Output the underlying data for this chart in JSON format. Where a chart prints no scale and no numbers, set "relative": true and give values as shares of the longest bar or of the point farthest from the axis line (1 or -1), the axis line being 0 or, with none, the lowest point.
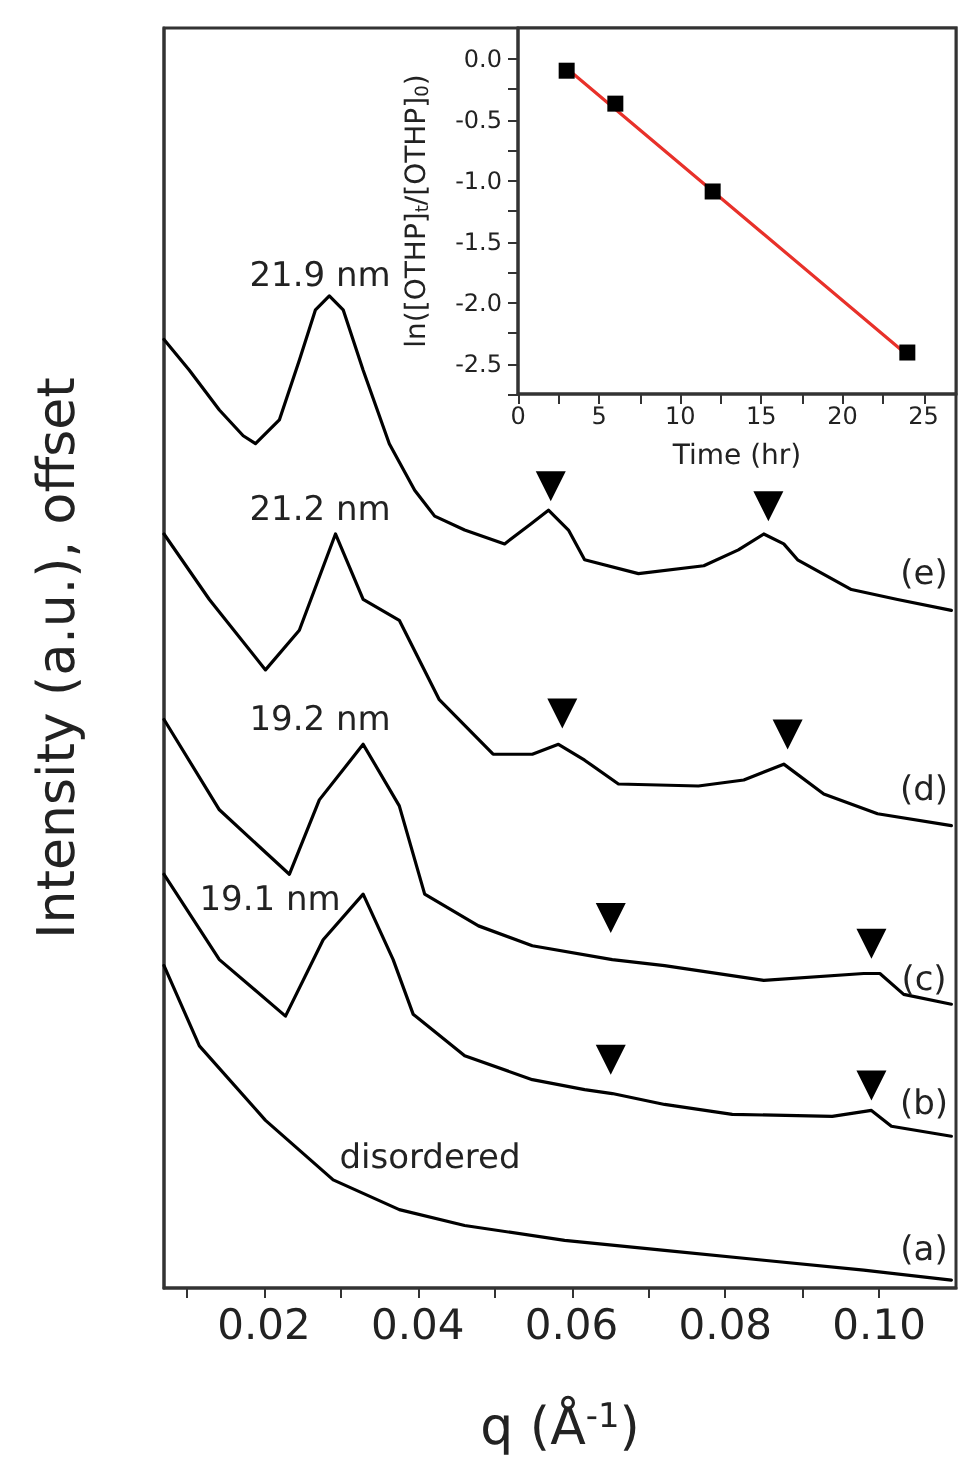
{
  "chart_data": [
    {
      "type": "line",
      "relative": true,
      "xlabel": "q (Å$^{-1}$)",
      "ylabel": "Intensity (a.u.), offset",
      "tick_labels": "x",
      "marker": "none",
      "xlim": [
        0.007,
        0.11
      ],
      "xticks": [
        {
          "value": 0.01,
          "label": null
        },
        0.02,
        {
          "value": 0.03,
          "label": null
        },
        0.04,
        {
          "value": 0.05,
          "label": null
        },
        0.06,
        {
          "value": 0.07,
          "label": null
        },
        0.08,
        {
          "value": 0.09,
          "label": null
        },
        {
          "value": 0.1,
          "label": "0.10"
        }
      ],
      "series": [
        {
          "color": "#000000",
          "x": [
            0.007,
            0.0103,
            0.0142,
            0.0173,
            0.0189,
            0.022,
            0.0246,
            0.0267,
            0.0285,
            0.0303,
            0.0329,
            0.0363,
            0.0396,
            0.0422,
            0.0461,
            0.0513,
            0.0547,
            0.057,
            0.0596,
            0.0617,
            0.0687,
            0.0772,
            0.0817,
            0.085,
            0.0876,
            0.0894,
            0.0964,
            0.1024,
            0.1094
          ],
          "values": [
            0.956,
            0.925,
            0.885,
            0.859,
            0.851,
            0.875,
            0.935,
            0.986,
            1.0,
            0.986,
            0.925,
            0.851,
            0.804,
            0.778,
            0.764,
            0.75,
            0.77,
            0.784,
            0.764,
            0.734,
            0.72,
            0.728,
            0.744,
            0.76,
            0.75,
            0.734,
            0.704,
            0.694,
            0.683
          ]
        },
        {
          "color": "#000000",
          "x": [
            0.007,
            0.0129,
            0.0202,
            0.0246,
            0.0293,
            0.0329,
            0.0376,
            0.0428,
            0.0498,
            0.0549,
            0.0583,
            0.0617,
            0.0661,
            0.0765,
            0.0824,
            0.0876,
            0.0928,
            0.0998,
            0.1094
          ],
          "values": [
            0.76,
            0.694,
            0.623,
            0.663,
            0.76,
            0.694,
            0.673,
            0.593,
            0.538,
            0.538,
            0.548,
            0.532,
            0.508,
            0.506,
            0.512,
            0.528,
            0.498,
            0.478,
            0.466
          ]
        },
        {
          "color": "#000000",
          "x": [
            0.007,
            0.0142,
            0.0233,
            0.0272,
            0.0329,
            0.0376,
            0.0409,
            0.0479,
            0.0549,
            0.0653,
            0.0721,
            0.085,
            0.098,
            0.1001,
            0.1032,
            0.1094
          ],
          "values": [
            0.573,
            0.482,
            0.417,
            0.492,
            0.548,
            0.486,
            0.397,
            0.365,
            0.345,
            0.331,
            0.325,
            0.31,
            0.317,
            0.317,
            0.296,
            0.286
          ]
        },
        {
          "color": "#000000",
          "x": [
            0.007,
            0.0142,
            0.0228,
            0.0277,
            0.0329,
            0.0368,
            0.0394,
            0.0461,
            0.0549,
            0.0617,
            0.0653,
            0.0721,
            0.0809,
            0.0939,
            0.099,
            0.1016,
            0.1094
          ],
          "values": [
            0.417,
            0.331,
            0.274,
            0.351,
            0.397,
            0.331,
            0.276,
            0.234,
            0.21,
            0.2,
            0.196,
            0.185,
            0.175,
            0.173,
            0.179,
            0.163,
            0.153
          ]
        },
        {
          "color": "#000000",
          "x": [
            0.007,
            0.0116,
            0.0202,
            0.029,
            0.0376,
            0.0461,
            0.0591,
            0.0721,
            0.085,
            0.098,
            0.1094
          ],
          "values": [
            0.325,
            0.244,
            0.169,
            0.109,
            0.079,
            0.063,
            0.048,
            0.038,
            0.028,
            0.018,
            0.008
          ]
        },
        {
          "type": "scatter",
          "marker": "triangle",
          "color": "#000000",
          "x": [
            0.0573,
            0.0856,
            0.0588,
            0.0881,
            0.0651,
            0.099,
            0.0651,
            0.099
          ],
          "values": [
            0.808,
            0.788,
            0.579,
            0.558,
            0.373,
            0.347,
            0.23,
            0.204
          ]
        }
      ],
      "annotations": [
        "21.9 nm",
        "21.2 nm",
        "19.2 nm",
        "19.1 nm",
        "disordered",
        "(e)",
        "(d)",
        "(c)",
        "(b)",
        "(a)"
      ]
    },
    {
      "type": "scatter",
      "xlabel": "Time (hr)",
      "ylabel": "ln([OTHP]$_{t}$/[OTHP]$_{0}$)",
      "xlim": [
        0,
        27
      ],
      "ylim": [
        -2.75,
        0.25
      ],
      "xticks": [
        0,
        {
          "value": 2.5,
          "label": null
        },
        5,
        {
          "value": 7.5,
          "label": null
        },
        10,
        {
          "value": 12.5,
          "label": null
        },
        15,
        {
          "value": 17.5,
          "label": null
        },
        20,
        {
          "value": 22.5,
          "label": null
        },
        25
      ],
      "yticks": [
        {
          "value": -2.75,
          "label": null
        },
        {
          "value": -2.5,
          "label": "-2.5"
        },
        {
          "value": -2.25,
          "label": null
        },
        {
          "value": -2,
          "label": "-2.0"
        },
        {
          "value": -1.75,
          "label": null
        },
        {
          "value": -1.5,
          "label": "-1.5"
        },
        {
          "value": -1.25,
          "label": null
        },
        {
          "value": -1,
          "label": "-1.0"
        },
        {
          "value": -0.75,
          "label": null
        },
        {
          "value": -0.5,
          "label": "-0.5"
        },
        {
          "value": -0.25,
          "label": null
        },
        {
          "value": 0,
          "label": "0.0"
        }
      ],
      "series": [
        {
          "marker": "square",
          "color": "#000000",
          "x": [
            3,
            6,
            12,
            24
          ],
          "values": [
            -0.1,
            -0.37,
            -1.09,
            -2.41
          ]
        },
        {
          "type": "line",
          "marker": "none",
          "color": "#e8312a",
          "x": [
            3,
            24
          ],
          "values": [
            -0.08,
            -2.43
          ]
        }
      ]
    }
  ]
}
